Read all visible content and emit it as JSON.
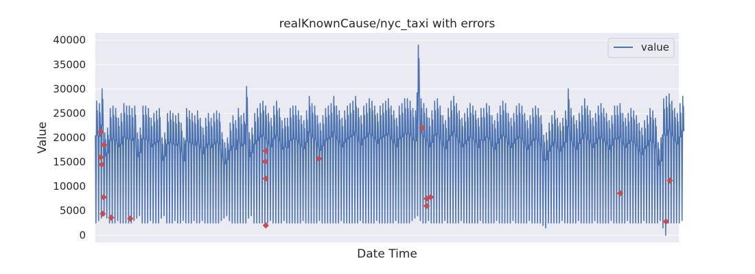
{
  "chart_data": {
    "type": "line",
    "title": "realKnownCause/nyc_taxi with errors",
    "xlabel": "Date Time",
    "ylabel": "Value",
    "ylim": [
      -1500,
      41500
    ],
    "yticks": [
      0,
      5000,
      10000,
      15000,
      20000,
      25000,
      30000,
      35000,
      40000
    ],
    "xticks_shown": false,
    "grid": true,
    "legend": {
      "position": "top-right",
      "entries": [
        "value"
      ]
    },
    "colors": {
      "series": "#4c72b0",
      "errors": "#c44e52",
      "plot_bg": "#eaeaf2",
      "grid": "#ffffff"
    },
    "x_range": [
      0,
      214
    ],
    "series": [
      {
        "name": "value",
        "note_x": "x is day index (approx. daily cycles); values are estimated peak/trough per day",
        "daily_peaks": [
          27500,
          27000,
          30000,
          21000,
          22000,
          26000,
          26500,
          26000,
          24000,
          25000,
          27000,
          26500,
          26500,
          26000,
          26500,
          21000,
          22000,
          26500,
          26500,
          26000,
          24000,
          25000,
          25500,
          26000,
          20000,
          21000,
          25000,
          25500,
          25000,
          24500,
          25000,
          23000,
          20000,
          26000,
          25500,
          25000,
          24500,
          25500,
          24000,
          22000,
          24000,
          25000,
          24000,
          25000,
          25500,
          25000,
          21000,
          19000,
          20000,
          23000,
          24500,
          23500,
          26000,
          24500,
          25000,
          30500,
          21000,
          22000,
          25000,
          26000,
          27000,
          27500,
          26500,
          25000,
          24000,
          26500,
          27500,
          26000,
          23500,
          24000,
          24000,
          26000,
          26500,
          26500,
          25500,
          24500,
          23500,
          25500,
          28500,
          27000,
          26500,
          24500,
          23000,
          24500,
          26000,
          26500,
          27000,
          28500,
          26500,
          25500,
          24000,
          25500,
          26500,
          27000,
          27500,
          28500,
          26000,
          24500,
          26500,
          27000,
          28000,
          27500,
          26500,
          25000,
          26500,
          27000,
          27500,
          28000,
          26500,
          25500,
          24000,
          26500,
          27000,
          28000,
          28000,
          27500,
          26000,
          25500,
          39000,
          28000,
          27000,
          26000,
          24000,
          25500,
          27500,
          28000,
          26500,
          24500,
          23500,
          26000,
          27500,
          28500,
          27000,
          25500,
          24000,
          25000,
          26000,
          27000,
          26500,
          25500,
          24000,
          26000,
          26000,
          27000,
          26500,
          24500,
          23500,
          25000,
          26500,
          27500,
          27000,
          25000,
          24000,
          25000,
          26500,
          27000,
          26500,
          25000,
          23500,
          24500,
          26000,
          26500,
          26000,
          24500,
          20500,
          21000,
          23000,
          24500,
          25500,
          24000,
          23000,
          24000,
          25500,
          30000,
          26000,
          24500,
          23500,
          25000,
          26500,
          28000,
          26500,
          25500,
          24000,
          25000,
          26500,
          27000,
          26000,
          25000,
          23500,
          24500,
          26500,
          26500,
          27000,
          25000,
          24000,
          25000,
          26000,
          25500,
          24500,
          23000,
          22000,
          23500,
          24500,
          26000,
          25500,
          24000,
          19000,
          20000,
          28000,
          28500,
          29000,
          27500,
          26000,
          25000,
          27000,
          28500
        ],
        "daily_troughs": [
          2500,
          3000,
          3500,
          4000,
          3500,
          2500,
          2500,
          2500,
          3000,
          2500,
          2500,
          2500,
          2500,
          2500,
          3000,
          3500,
          4000,
          2500,
          2500,
          2500,
          3000,
          2500,
          2500,
          2500,
          3500,
          4000,
          2500,
          2500,
          2500,
          3000,
          2500,
          2500,
          3000,
          2500,
          2500,
          2500,
          3000,
          2500,
          2500,
          3000,
          2500,
          2500,
          2500,
          2500,
          2500,
          2500,
          3000,
          3500,
          4000,
          3000,
          2500,
          2500,
          2500,
          2500,
          2500,
          2500,
          3500,
          4000,
          2500,
          2500,
          2500,
          2500,
          2500,
          2500,
          3000,
          2500,
          2500,
          2500,
          2500,
          3000,
          2500,
          2500,
          2500,
          2500,
          2500,
          2500,
          3000,
          2500,
          2500,
          2500,
          2500,
          2500,
          3000,
          2500,
          2500,
          2500,
          2500,
          2500,
          2500,
          2500,
          3000,
          2500,
          2500,
          2500,
          2500,
          2500,
          2500,
          3000,
          2500,
          2500,
          2500,
          2500,
          2500,
          3000,
          2500,
          2500,
          2500,
          2500,
          2500,
          2500,
          3000,
          2500,
          2500,
          2500,
          2500,
          2500,
          3000,
          3500,
          4000,
          3000,
          2500,
          2500,
          3000,
          2500,
          2500,
          2500,
          2500,
          2500,
          3000,
          2500,
          2500,
          2500,
          2500,
          2500,
          3000,
          2500,
          2500,
          2500,
          2500,
          2500,
          2500,
          3000,
          2500,
          2500,
          2500,
          2500,
          2500,
          3000,
          2500,
          2500,
          2500,
          2500,
          2500,
          3000,
          2500,
          2500,
          2500,
          2500,
          2500,
          3000,
          2500,
          2500,
          2500,
          2500,
          2000,
          1500,
          2500,
          2500,
          2500,
          2500,
          2500,
          3000,
          2500,
          2500,
          2500,
          2500,
          2500,
          3000,
          2500,
          2500,
          2500,
          2500,
          2500,
          3000,
          2500,
          2500,
          2500,
          2500,
          2500,
          3000,
          2500,
          2500,
          2500,
          2500,
          2500,
          3000,
          2500,
          2500,
          2500,
          2500,
          2500,
          3000,
          2500,
          2500,
          2500,
          2500,
          2500,
          3000,
          1500,
          0,
          2500,
          2500,
          2500,
          2500,
          2500,
          3000,
          2500,
          2500
        ]
      },
      {
        "name": "errors",
        "marker": "diamond",
        "points": [
          {
            "x": 2.0,
            "y": 21200
          },
          {
            "x": 2.0,
            "y": 16000
          },
          {
            "x": 2.3,
            "y": 14500
          },
          {
            "x": 3.2,
            "y": 18500
          },
          {
            "x": 3.0,
            "y": 7800
          },
          {
            "x": 2.7,
            "y": 4400
          },
          {
            "x": 5.8,
            "y": 3600
          },
          {
            "x": 12.8,
            "y": 3400
          },
          {
            "x": 62.5,
            "y": 17300
          },
          {
            "x": 62.3,
            "y": 15100
          },
          {
            "x": 62.5,
            "y": 11600
          },
          {
            "x": 62.5,
            "y": 2000
          },
          {
            "x": 82.0,
            "y": 15700
          },
          {
            "x": 119.8,
            "y": 22000
          },
          {
            "x": 121.5,
            "y": 7500
          },
          {
            "x": 121.5,
            "y": 6000
          },
          {
            "x": 123.0,
            "y": 7800
          },
          {
            "x": 192.5,
            "y": 8600
          },
          {
            "x": 210.7,
            "y": 11200
          },
          {
            "x": 209.3,
            "y": 2800
          }
        ]
      }
    ]
  }
}
